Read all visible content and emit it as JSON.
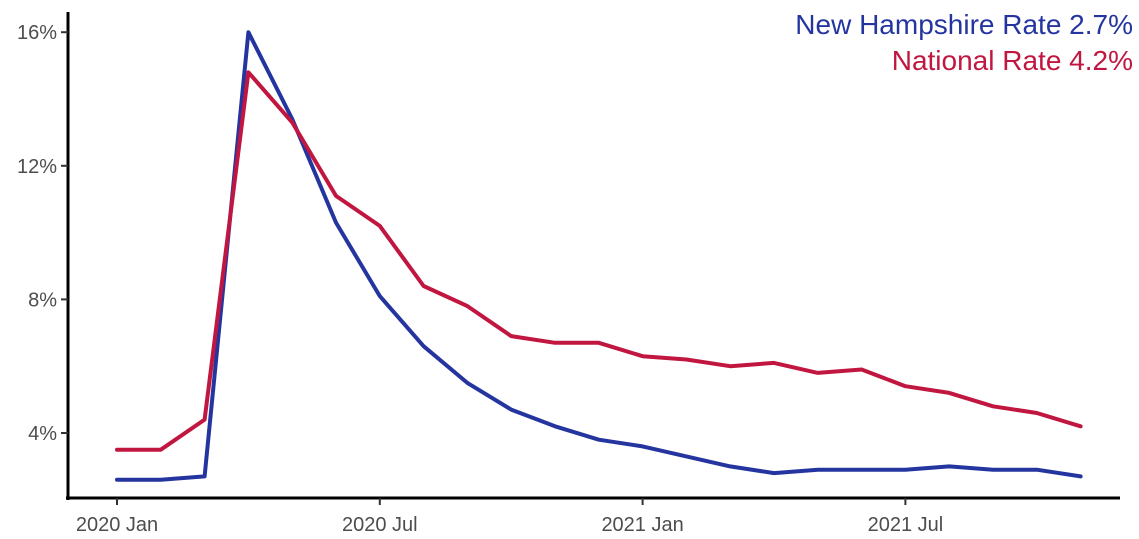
{
  "chart_data": {
    "type": "line",
    "title": "",
    "xlabel": "",
    "ylabel": "",
    "x": [
      "2020-01",
      "2020-02",
      "2020-03",
      "2020-04",
      "2020-05",
      "2020-06",
      "2020-07",
      "2020-08",
      "2020-09",
      "2020-10",
      "2020-11",
      "2020-12",
      "2021-01",
      "2021-02",
      "2021-03",
      "2021-04",
      "2021-05",
      "2021-06",
      "2021-07",
      "2021-08",
      "2021-09",
      "2021-10",
      "2021-11"
    ],
    "x_ticks": [
      {
        "x": "2020-01",
        "label": "2020 Jan"
      },
      {
        "x": "2020-07",
        "label": "2020 Jul"
      },
      {
        "x": "2021-01",
        "label": "2021 Jan"
      },
      {
        "x": "2021-07",
        "label": "2021 Jul"
      }
    ],
    "y_ticks": [
      {
        "value": 4,
        "label": "4%"
      },
      {
        "value": 8,
        "label": "8%"
      },
      {
        "value": 12,
        "label": "12%"
      },
      {
        "value": 16,
        "label": "16%"
      }
    ],
    "ylim": [
      1.9,
      16.7
    ],
    "grid": false,
    "legend_position": "top-right",
    "series": [
      {
        "name": "New Hampshire Rate",
        "legend_label": "New Hampshire Rate 2.7%",
        "color": "#2535A0",
        "values": [
          2.6,
          2.6,
          2.7,
          16.0,
          13.4,
          10.3,
          8.1,
          6.6,
          5.5,
          4.7,
          4.2,
          3.8,
          3.6,
          3.3,
          3.0,
          2.8,
          2.9,
          2.9,
          2.9,
          3.0,
          2.9,
          2.9,
          2.7
        ]
      },
      {
        "name": "National Rate",
        "legend_label": "National Rate 4.2%",
        "color": "#C0163F",
        "values": [
          3.5,
          3.5,
          4.4,
          14.8,
          13.3,
          11.1,
          10.2,
          8.4,
          7.8,
          6.9,
          6.7,
          6.7,
          6.3,
          6.2,
          6.0,
          6.1,
          5.8,
          5.9,
          5.4,
          5.2,
          4.8,
          4.6,
          4.2
        ]
      }
    ]
  }
}
